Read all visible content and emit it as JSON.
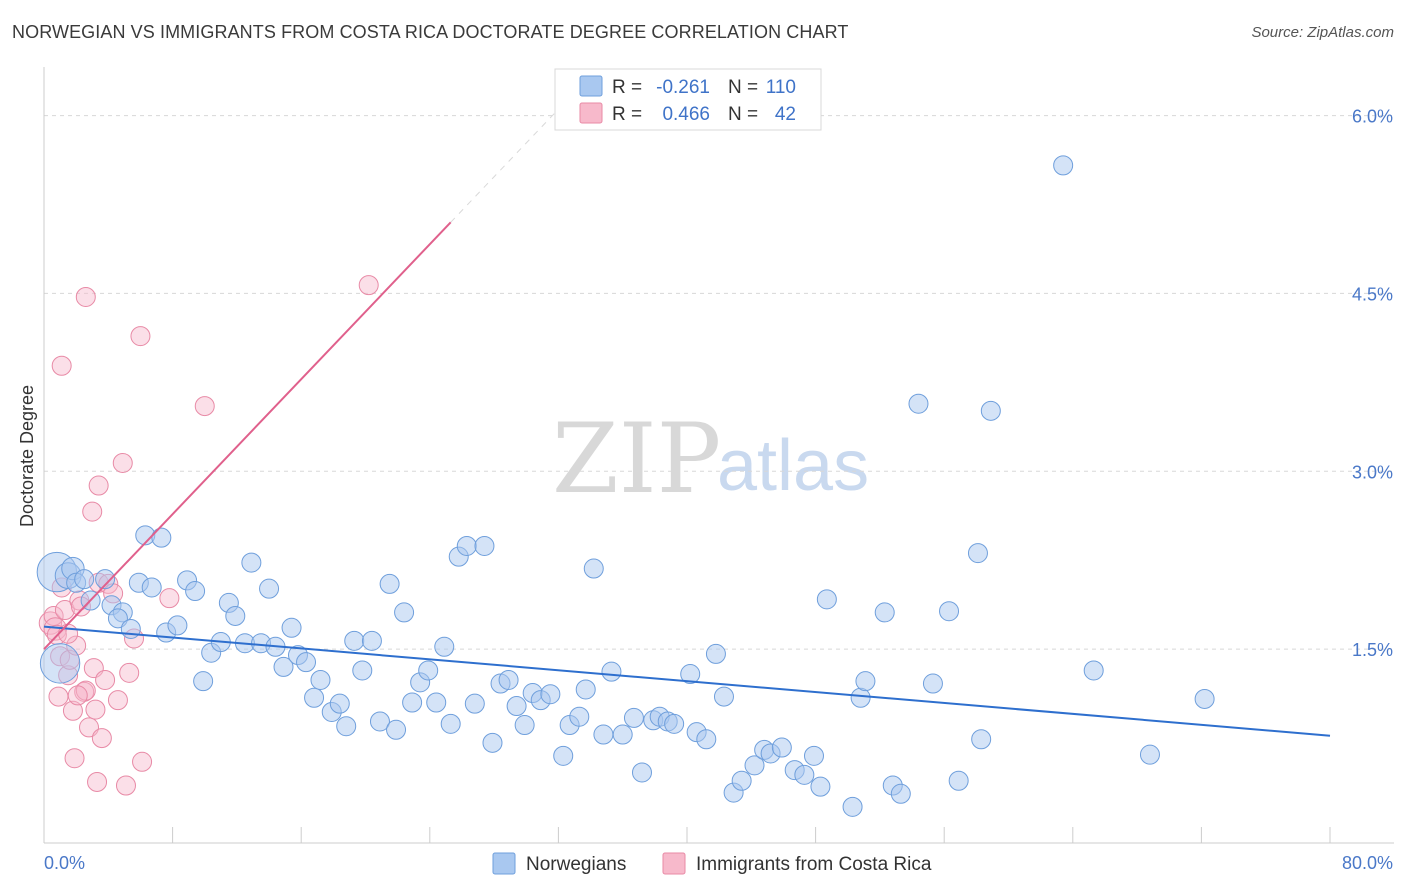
{
  "header": {
    "title": "NORWEGIAN VS IMMIGRANTS FROM COSTA RICA DOCTORATE DEGREE CORRELATION CHART",
    "source": "Source: ZipAtlas.com"
  },
  "watermark": {
    "zip": "ZIP",
    "atlas": "atlas"
  },
  "legend": {
    "r_label": "R =",
    "n_label": "N =",
    "entries": [
      {
        "r": "-0.261",
        "n": "110",
        "color": "#a9c8f0"
      },
      {
        "r": "0.466",
        "n": "42",
        "color": "#f7b9cb"
      }
    ]
  },
  "bottom_legend": [
    {
      "label": "Norwegians",
      "color": "#a9c8f0"
    },
    {
      "label": "Immigrants from Costa Rica",
      "color": "#f7b9cb"
    }
  ],
  "colors": {
    "blue_fill": "#a9c8f0",
    "blue_stroke": "#6f9fdc",
    "blue_line": "#2e6fce",
    "pink_fill": "#f7b9cb",
    "pink_stroke": "#e88aa6",
    "pink_line": "#e0608c",
    "tick_text": "#4a78c8",
    "grid": "#d8d8d8"
  },
  "chart_data": {
    "type": "scatter",
    "title": "NORWEGIAN VS IMMIGRANTS FROM COSTA RICA DOCTORATE DEGREE CORRELATION CHART",
    "xlabel": "",
    "ylabel": "Doctorate Degree",
    "xlim": [
      0,
      80
    ],
    "ylim": [
      0,
      6.3
    ],
    "x_tick_labels": [
      "0.0%",
      "80.0%"
    ],
    "y_ticks": [
      1.5,
      3.0,
      4.5,
      6.0
    ],
    "y_tick_labels": [
      "1.5%",
      "3.0%",
      "4.5%",
      "6.0%"
    ],
    "grid": true,
    "legend_position": "top-center",
    "series": [
      {
        "name": "Norwegians",
        "r": -0.261,
        "n": 110,
        "trend": {
          "x0": 0.0,
          "y0": 1.69,
          "x1": 80.0,
          "y1": 0.77
        },
        "points": [
          [
            0.8,
            2.15,
            22
          ],
          [
            1.0,
            1.38,
            22
          ],
          [
            1.5,
            2.12,
            14
          ],
          [
            1.8,
            2.18,
            12
          ],
          [
            2.0,
            2.06,
            10
          ],
          [
            2.5,
            2.09,
            10
          ],
          [
            2.9,
            1.91,
            10
          ],
          [
            3.8,
            2.09,
            10
          ],
          [
            4.2,
            1.87,
            10
          ],
          [
            4.9,
            1.81,
            10
          ],
          [
            4.6,
            1.76,
            10
          ],
          [
            5.4,
            1.67,
            10
          ],
          [
            5.9,
            2.06,
            10
          ],
          [
            6.7,
            2.02,
            10
          ],
          [
            6.3,
            2.46,
            10
          ],
          [
            7.3,
            2.44,
            10
          ],
          [
            7.6,
            1.64,
            10
          ],
          [
            8.3,
            1.7,
            10
          ],
          [
            8.9,
            2.08,
            10
          ],
          [
            9.4,
            1.99,
            10
          ],
          [
            9.9,
            1.23,
            10
          ],
          [
            10.4,
            1.47,
            10
          ],
          [
            11.0,
            1.56,
            10
          ],
          [
            11.5,
            1.89,
            10
          ],
          [
            11.9,
            1.78,
            10
          ],
          [
            12.5,
            1.55,
            10
          ],
          [
            12.9,
            2.23,
            10
          ],
          [
            13.5,
            1.55,
            10
          ],
          [
            14.0,
            2.01,
            10
          ],
          [
            14.4,
            1.52,
            10
          ],
          [
            14.9,
            1.35,
            10
          ],
          [
            15.4,
            1.68,
            10
          ],
          [
            15.8,
            1.45,
            10
          ],
          [
            16.3,
            1.39,
            10
          ],
          [
            16.8,
            1.09,
            10
          ],
          [
            17.2,
            1.24,
            10
          ],
          [
            17.9,
            0.97,
            10
          ],
          [
            18.4,
            1.04,
            10
          ],
          [
            18.8,
            0.85,
            10
          ],
          [
            19.3,
            1.57,
            10
          ],
          [
            19.8,
            1.32,
            10
          ],
          [
            20.4,
            1.57,
            10
          ],
          [
            20.9,
            0.89,
            10
          ],
          [
            21.5,
            2.05,
            10
          ],
          [
            21.9,
            0.82,
            10
          ],
          [
            22.4,
            1.81,
            10
          ],
          [
            22.9,
            1.05,
            10
          ],
          [
            23.4,
            1.22,
            10
          ],
          [
            23.9,
            1.32,
            10
          ],
          [
            24.4,
            1.05,
            10
          ],
          [
            24.9,
            1.52,
            10
          ],
          [
            25.3,
            0.87,
            10
          ],
          [
            25.8,
            2.28,
            10
          ],
          [
            26.3,
            2.37,
            10
          ],
          [
            26.8,
            1.04,
            10
          ],
          [
            27.4,
            2.37,
            10
          ],
          [
            27.9,
            0.71,
            10
          ],
          [
            28.4,
            1.21,
            10
          ],
          [
            28.9,
            1.24,
            10
          ],
          [
            29.4,
            1.02,
            10
          ],
          [
            29.9,
            0.86,
            10
          ],
          [
            30.4,
            1.13,
            10
          ],
          [
            30.9,
            1.07,
            10
          ],
          [
            31.5,
            1.12,
            10
          ],
          [
            32.3,
            0.6,
            10
          ],
          [
            32.7,
            0.86,
            10
          ],
          [
            33.3,
            0.93,
            10
          ],
          [
            33.7,
            1.16,
            10
          ],
          [
            34.2,
            2.18,
            10
          ],
          [
            34.8,
            0.78,
            10
          ],
          [
            35.3,
            1.31,
            10
          ],
          [
            36.0,
            0.78,
            10
          ],
          [
            36.7,
            0.92,
            10
          ],
          [
            37.2,
            0.46,
            10
          ],
          [
            37.9,
            0.9,
            10
          ],
          [
            38.3,
            0.93,
            10
          ],
          [
            38.8,
            0.89,
            10
          ],
          [
            39.2,
            0.87,
            10
          ],
          [
            40.2,
            1.29,
            10
          ],
          [
            40.6,
            0.8,
            10
          ],
          [
            41.2,
            0.74,
            10
          ],
          [
            41.8,
            1.46,
            10
          ],
          [
            42.3,
            1.1,
            10
          ],
          [
            42.9,
            0.29,
            10
          ],
          [
            43.4,
            0.39,
            10
          ],
          [
            44.2,
            0.52,
            10
          ],
          [
            44.8,
            0.65,
            10
          ],
          [
            45.2,
            0.62,
            10
          ],
          [
            45.9,
            0.67,
            10
          ],
          [
            46.7,
            0.48,
            10
          ],
          [
            47.3,
            0.44,
            10
          ],
          [
            47.9,
            0.6,
            10
          ],
          [
            48.3,
            0.34,
            10
          ],
          [
            48.7,
            1.92,
            10
          ],
          [
            50.3,
            0.17,
            10
          ],
          [
            50.8,
            1.09,
            10
          ],
          [
            51.1,
            1.23,
            10
          ],
          [
            52.3,
            1.81,
            10
          ],
          [
            52.8,
            0.35,
            10
          ],
          [
            53.3,
            0.28,
            10
          ],
          [
            54.4,
            3.57,
            10
          ],
          [
            55.3,
            1.21,
            10
          ],
          [
            56.3,
            1.82,
            10
          ],
          [
            56.9,
            0.39,
            10
          ],
          [
            58.9,
            3.51,
            10
          ],
          [
            58.1,
            2.31,
            10
          ],
          [
            58.3,
            0.74,
            10
          ],
          [
            63.4,
            5.58,
            10
          ],
          [
            65.3,
            1.32,
            10
          ],
          [
            68.8,
            0.61,
            10
          ],
          [
            72.2,
            1.08,
            10
          ]
        ]
      },
      {
        "name": "Immigrants from Costa Rica",
        "r": 0.466,
        "n": 42,
        "trend": {
          "x0": 0.0,
          "y0": 1.5,
          "x1": 25.3,
          "y1": 5.1
        },
        "points": [
          [
            0.4,
            1.72,
            12
          ],
          [
            0.6,
            1.78,
            10
          ],
          [
            0.7,
            1.67,
            12
          ],
          [
            0.8,
            1.62,
            10
          ],
          [
            1.0,
            1.44,
            10
          ],
          [
            0.9,
            1.1,
            10
          ],
          [
            1.1,
            2.02,
            10
          ],
          [
            1.3,
            1.83,
            10
          ],
          [
            1.5,
            1.28,
            10
          ],
          [
            1.6,
            1.41,
            10
          ],
          [
            1.8,
            0.98,
            10
          ],
          [
            2.0,
            1.53,
            10
          ],
          [
            2.2,
            1.91,
            10
          ],
          [
            2.3,
            1.86,
            10
          ],
          [
            2.5,
            1.14,
            10
          ],
          [
            2.6,
            1.15,
            10
          ],
          [
            2.8,
            0.84,
            10
          ],
          [
            3.0,
            2.66,
            10
          ],
          [
            3.1,
            1.34,
            10
          ],
          [
            3.2,
            0.99,
            10
          ],
          [
            3.4,
            2.06,
            10
          ],
          [
            3.6,
            0.75,
            10
          ],
          [
            3.8,
            1.24,
            10
          ],
          [
            4.0,
            2.05,
            10
          ],
          [
            4.3,
            1.97,
            10
          ],
          [
            4.6,
            1.07,
            10
          ],
          [
            4.9,
            3.07,
            10
          ],
          [
            5.3,
            1.3,
            10
          ],
          [
            5.6,
            1.59,
            10
          ],
          [
            6.0,
            4.14,
            10
          ],
          [
            6.1,
            0.55,
            10
          ],
          [
            3.4,
            2.88,
            10
          ],
          [
            1.1,
            3.89,
            10
          ],
          [
            2.6,
            4.47,
            10
          ],
          [
            1.9,
            0.58,
            10
          ],
          [
            3.3,
            0.38,
            10
          ],
          [
            10.0,
            3.55,
            10
          ],
          [
            7.8,
            1.93,
            10
          ],
          [
            20.2,
            4.57,
            10
          ],
          [
            5.1,
            0.35,
            10
          ],
          [
            2.1,
            1.11,
            10
          ],
          [
            1.5,
            1.63,
            10
          ]
        ]
      }
    ]
  }
}
